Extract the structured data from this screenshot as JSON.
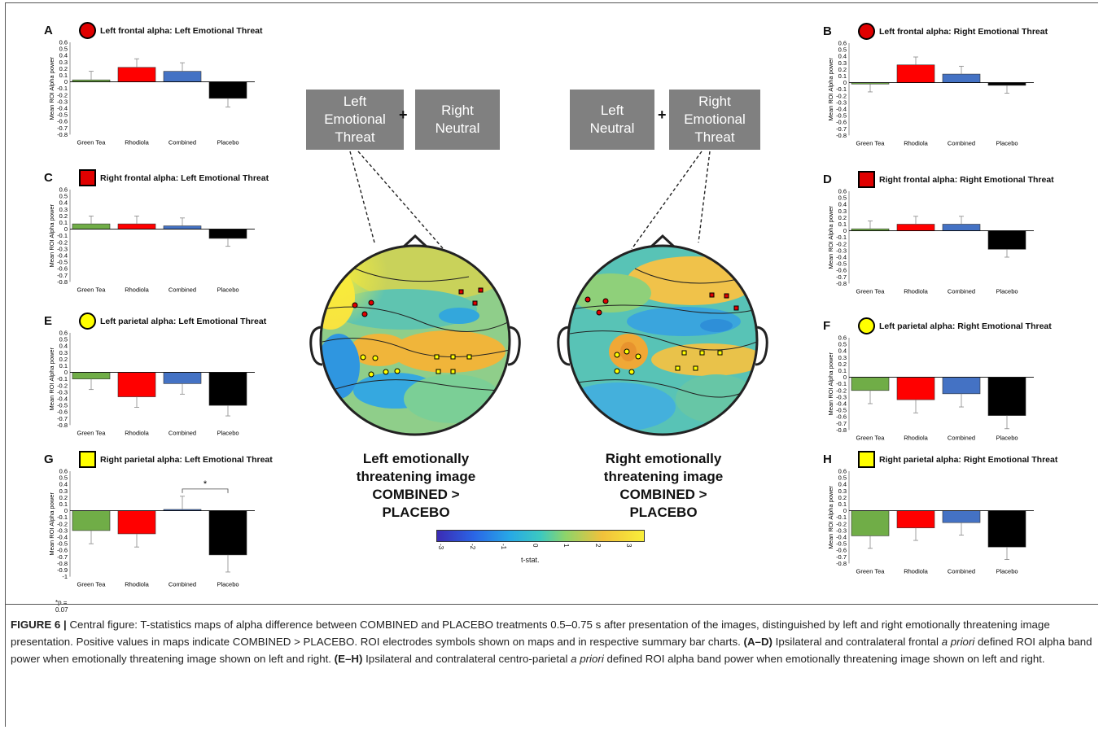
{
  "colors": {
    "green": "#70ad47",
    "red": "#ff0000",
    "blue": "#4472c4",
    "black": "#000000",
    "marker_red": "#e00000",
    "marker_yellow": "#ffff00",
    "cond_box": "#808080"
  },
  "conditions": {
    "left": {
      "box1": "Left\nEmotional\nThreat",
      "plus": "+",
      "box2": "Right\nNeutral"
    },
    "right": {
      "box1": "Left\nNeutral",
      "plus": "+",
      "box2": "Right\nEmotional\nThreat"
    }
  },
  "maps": {
    "left": {
      "caption": "Left emotionally\nthreatening image\nCOMBINED >\nPLACEBO"
    },
    "right": {
      "caption": "Right emotionally\nthreatening image\nCOMBINED >\nPLACEBO"
    }
  },
  "colorbar": {
    "ticks": [
      "-3",
      "-2",
      "-1",
      "0",
      "1",
      "2",
      "3"
    ],
    "label": "t-stat."
  },
  "caption": {
    "figure_label": "FIGURE 6 |",
    "p1": " Central figure: T-statistics maps of alpha difference between COMBINED and PLACEBO treatments 0.5–0.75 s after presentation of the images, distinguished by left and right emotionally threatening image presentation. Positive values in maps indicate COMBINED > PLACEBO. ROI electrodes symbols shown on maps and in respective summary bar charts. ",
    "ad_label": "(A–D)",
    "p2": " Ipsilateral and contralateral frontal ",
    "apriori1": "a priori",
    "p3": " defined ROI alpha band power when emotionally threatening image shown on left and right. ",
    "eh_label": "(E–H)",
    "p4": " Ipsilateral and contralateral centro-parietal ",
    "apriori2": "a priori",
    "p5": " defined ROI alpha band power when emotionally threatening image shown on left and right."
  },
  "chart_data": [
    {
      "panel": "A",
      "type": "bar",
      "title": "Left frontal alpha: Left Emotional Threat",
      "marker": "red-circle",
      "ylabel": "Mean ROI Alpha power",
      "ylim": [
        -0.8,
        0.6
      ],
      "ticks": [
        "0.6",
        "0.5",
        "0.4",
        "0.3",
        "0.2",
        "0.1",
        "0",
        "-0.1",
        "-0.2",
        "-0.3",
        "-0.4",
        "-0.5",
        "-0.6",
        "-0.7",
        "-0.8"
      ],
      "categories": [
        "Green Tea",
        "Rhodiola",
        "Combined",
        "Placebo"
      ],
      "values": [
        0.03,
        0.22,
        0.16,
        -0.25
      ],
      "errors": [
        0.13,
        0.13,
        0.13,
        0.13
      ]
    },
    {
      "panel": "B",
      "type": "bar",
      "title": "Left frontal alpha: Right Emotional Threat",
      "marker": "red-circle",
      "ylabel": "Mean ROI Alpha power",
      "ylim": [
        -0.8,
        0.6
      ],
      "ticks": [
        "0.6",
        "0.5",
        "0.4",
        "0.3",
        "0.2",
        "0.1",
        "0",
        "-0.1",
        "-0.2",
        "-0.3",
        "-0.4",
        "-0.5",
        "-0.6",
        "-0.7",
        "-0.8"
      ],
      "categories": [
        "Green Tea",
        "Rhodiola",
        "Combined",
        "Placebo"
      ],
      "values": [
        -0.02,
        0.27,
        0.13,
        -0.04
      ],
      "errors": [
        0.12,
        0.12,
        0.12,
        0.12
      ]
    },
    {
      "panel": "C",
      "type": "bar",
      "title": "Right frontal alpha: Left Emotional Threat",
      "marker": "red-square",
      "ylabel": "Mean ROI Alpha power",
      "ylim": [
        -0.8,
        0.6
      ],
      "ticks": [
        "0.6",
        "0.5",
        "0.4",
        "0.3",
        "0.2",
        "0.1",
        "0",
        "-0.1",
        "-0.2",
        "-0.3",
        "-0.4",
        "-0.5",
        "-0.6",
        "-0.7",
        "-0.8"
      ],
      "categories": [
        "Green Tea",
        "Rhodiola",
        "Combined",
        "Placebo"
      ],
      "values": [
        0.08,
        0.08,
        0.05,
        -0.14
      ],
      "errors": [
        0.12,
        0.12,
        0.12,
        0.12
      ]
    },
    {
      "panel": "D",
      "type": "bar",
      "title": "Right frontal alpha: Right Emotional Threat",
      "marker": "red-square",
      "ylabel": "Mean ROI Alpha power",
      "ylim": [
        -0.8,
        0.6
      ],
      "ticks": [
        "0.6",
        "0.5",
        "0.4",
        "0.3",
        "0.2",
        "0.1",
        "0",
        "-0.1",
        "-0.2",
        "-0.3",
        "-0.4",
        "-0.5",
        "-0.6",
        "-0.7",
        "-0.8"
      ],
      "categories": [
        "Green Tea",
        "Rhodiola",
        "Combined",
        "Placebo"
      ],
      "values": [
        0.03,
        0.1,
        0.1,
        -0.28
      ],
      "errors": [
        0.12,
        0.12,
        0.12,
        0.12
      ]
    },
    {
      "panel": "E",
      "type": "bar",
      "title": "Left parietal alpha: Left Emotional Threat",
      "marker": "yellow-circle",
      "ylabel": "Mean ROI Alpha power",
      "ylim": [
        -0.8,
        0.6
      ],
      "ticks": [
        "0.6",
        "0.5",
        "0.4",
        "0.3",
        "0.2",
        "0.1",
        "0",
        "-0.1",
        "-0.2",
        "-0.3",
        "-0.4",
        "-0.5",
        "-0.6",
        "-0.7",
        "-0.8"
      ],
      "categories": [
        "Green Tea",
        "Rhodiola",
        "Combined",
        "Placebo"
      ],
      "values": [
        -0.1,
        -0.37,
        -0.17,
        -0.5
      ],
      "errors": [
        0.16,
        0.16,
        0.16,
        0.16
      ]
    },
    {
      "panel": "F",
      "type": "bar",
      "title": "Left parietal alpha: Right Emotional Threat",
      "marker": "yellow-circle",
      "ylabel": "Mean ROI Alpha power",
      "ylim": [
        -0.8,
        0.6
      ],
      "ticks": [
        "0.6",
        "0.5",
        "0.4",
        "0.3",
        "0.2",
        "0.1",
        "0",
        "-0.1",
        "-0.2",
        "-0.3",
        "-0.4",
        "-0.5",
        "-0.6",
        "-0.7",
        "-0.8"
      ],
      "categories": [
        "Green Tea",
        "Rhodiola",
        "Combined",
        "Placebo"
      ],
      "values": [
        -0.2,
        -0.34,
        -0.25,
        -0.58
      ],
      "errors": [
        0.2,
        0.2,
        0.2,
        0.2
      ]
    },
    {
      "panel": "G",
      "type": "bar",
      "title": "Right parietal alpha: Left Emotional Threat",
      "marker": "yellow-square",
      "ylabel": "Mean ROI Alpha power",
      "ylim": [
        -1,
        0.6
      ],
      "ticks": [
        "0.6",
        "0.5",
        "0.4",
        "0.3",
        "0.2",
        "0.1",
        "0",
        "-0.1",
        "-0.2",
        "-0.3",
        "-0.4",
        "-0.5",
        "-0.6",
        "-0.7",
        "-0.8",
        "-0.9",
        "-1"
      ],
      "categories": [
        "Green Tea",
        "Rhodiola",
        "Combined",
        "Placebo"
      ],
      "values": [
        -0.3,
        -0.35,
        0.02,
        -0.67
      ],
      "errors": [
        0.2,
        0.2,
        0.2,
        0.26
      ],
      "annotation": {
        "text": "*",
        "between": [
          2,
          3
        ]
      },
      "footnote": "*p = 0.07"
    },
    {
      "panel": "H",
      "type": "bar",
      "title": "Right parietal alpha: Right Emotional Threat",
      "marker": "yellow-square",
      "ylabel": "Mean ROI Alpha power",
      "ylim": [
        -0.8,
        0.6
      ],
      "ticks": [
        "0.6",
        "0.5",
        "0.4",
        "0.3",
        "0.2",
        "0.1",
        "0",
        "-0.1",
        "-0.2",
        "-0.3",
        "-0.4",
        "-0.5",
        "-0.6",
        "-0.7",
        "-0.8"
      ],
      "categories": [
        "Green Tea",
        "Rhodiola",
        "Combined",
        "Placebo"
      ],
      "values": [
        -0.38,
        -0.26,
        -0.18,
        -0.55
      ],
      "errors": [
        0.19,
        0.19,
        0.19,
        0.19
      ]
    }
  ]
}
